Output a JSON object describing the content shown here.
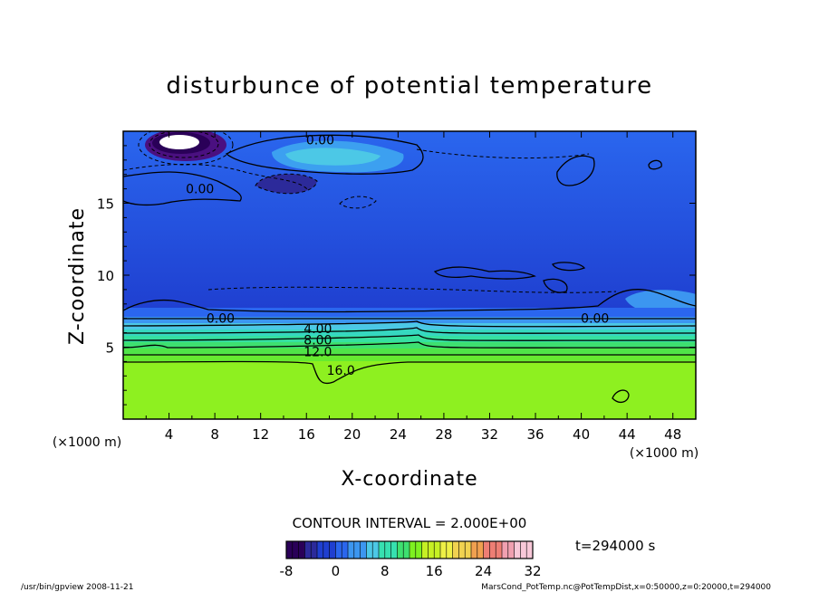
{
  "chart_data": {
    "type": "heatmap",
    "title": "disturbunce of potential temperature",
    "xlabel": "X-coordinate",
    "ylabel": "Z-coordinate",
    "x_unit": "(×1000 m)",
    "y_unit": "(×1000 m)",
    "xlim": [
      0,
      50
    ],
    "ylim": [
      0,
      20
    ],
    "xticks": [
      4,
      8,
      12,
      16,
      20,
      24,
      28,
      32,
      36,
      40,
      44,
      48
    ],
    "yticks": [
      5,
      10,
      15
    ],
    "contour_interval_label": "CONTOUR INTERVAL = 2.000E+00",
    "contour_labels": [
      {
        "text": "0.00",
        "x": 17.2,
        "z": 19.4
      },
      {
        "text": "0.00",
        "x": 6.7,
        "z": 16.0
      },
      {
        "text": "0.00",
        "x": 8.5,
        "z": 7.0
      },
      {
        "text": "0.00",
        "x": 41.2,
        "z": 7.0
      },
      {
        "text": "4.00",
        "x": 17.0,
        "z": 6.3
      },
      {
        "text": "8.00",
        "x": 17.0,
        "z": 5.5
      },
      {
        "text": "12.0",
        "x": 17.0,
        "z": 4.7
      },
      {
        "text": "16.0",
        "x": 19.0,
        "z": 3.4
      }
    ],
    "colorbar": {
      "min": -8,
      "max": 32,
      "ticks": [
        -8,
        0,
        8,
        16,
        24,
        32
      ],
      "colors": [
        "#2a0058",
        "#2c2a9a",
        "#1f3fd0",
        "#2a66ee",
        "#3c96f0",
        "#4cc8e6",
        "#36e0b0",
        "#3ee070",
        "#7ef020",
        "#c6f024",
        "#eef046",
        "#f0d250",
        "#f0a050",
        "#ee7e74",
        "#f0a0b0",
        "#f8c8d8"
      ]
    },
    "time_label": "t=294000 s",
    "footer_left": "/usr/bin/gpview   2008-11-21",
    "footer_right": "MarsCond_PotTemp.nc@PotTempDist,x=0:50000,z=0:20000,t=294000"
  }
}
